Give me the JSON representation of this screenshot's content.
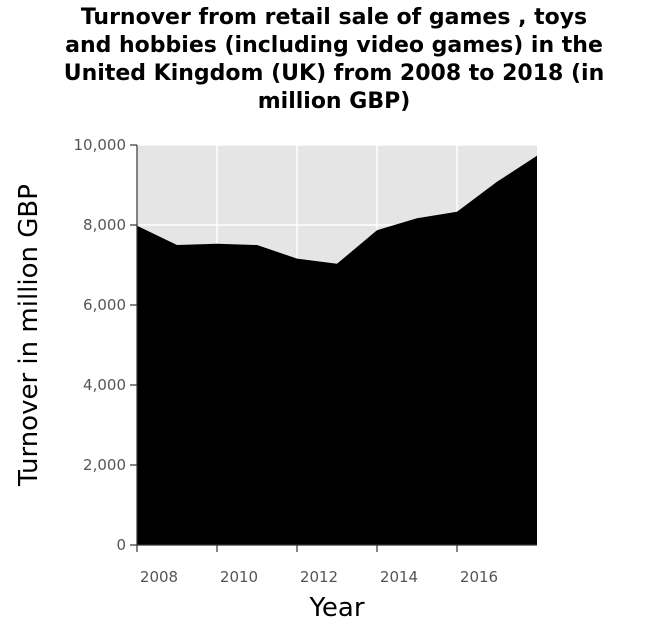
{
  "chart_data": {
    "type": "area",
    "title_lines": [
      "Turnover from retail sale of games , toys",
      "and hobbies (including video games) in the",
      "United Kingdom (UK) from 2008 to 2018 (in",
      "million GBP)"
    ],
    "title": "Turnover from retail sale of games , toys and hobbies (including video games) in the United Kingdom (UK) from 2008 to 2018 (in million GBP)",
    "xlabel": "Year",
    "ylabel": "Turnover in million GBP",
    "x": [
      2008,
      2009,
      2010,
      2011,
      2012,
      2013,
      2014,
      2015,
      2016,
      2017,
      2018
    ],
    "values": [
      7980,
      7500,
      7530,
      7500,
      7160,
      7030,
      7870,
      8170,
      8330,
      9080,
      9730
    ],
    "xlim": [
      2008,
      2018
    ],
    "ylim": [
      0,
      10000
    ],
    "x_ticks": [
      2008,
      2010,
      2012,
      2014,
      2016
    ],
    "x_tick_labels": [
      "2008",
      "2010",
      "2012",
      "2014",
      "2016"
    ],
    "y_ticks": [
      0,
      2000,
      4000,
      6000,
      8000,
      10000
    ],
    "y_tick_labels": [
      "0",
      "2,000",
      "4,000",
      "6,000",
      "8,000",
      "10,000"
    ],
    "grid": true,
    "colors": {
      "fill": "#000000",
      "plot_bg": "#e5e5e5",
      "grid": "#ffffff",
      "tick_text": "#555555"
    }
  }
}
